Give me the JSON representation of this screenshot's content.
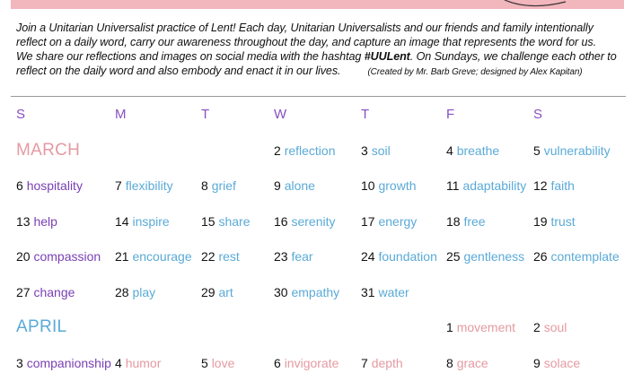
{
  "colors": {
    "band": "#f2b6bd",
    "heading_purple": "#8a4fc0",
    "word_purple": "#7a3fb4",
    "word_blue": "#5aaad7",
    "word_pink": "#e49aa1"
  },
  "intro": {
    "line1": "Join a Unitarian Universalist practice of Lent! Each day, Unitarian Universalists and our friends and family intentionally",
    "line2": "reflect on a daily word, carry our awareness throughout the day, and capture an image that represents the word for us.",
    "line3_before": "We share our reflections and images on social media with the hashtag ",
    "hashtag": "#UULent",
    "line3_after": ". On Sundays, we challenge each other to",
    "line4": "reflect on the daily word and also embody and enact it in our lives.",
    "credit": "(Created by Mr. Barb Greve; designed by Alex Kapitan)"
  },
  "weekdays": [
    "S",
    "M",
    "T",
    "W",
    "T",
    "F",
    "S"
  ],
  "months": {
    "march": "MARCH",
    "april": "APRIL"
  },
  "weeks": [
    [
      null,
      null,
      null,
      {
        "num": "2",
        "word": "reflection",
        "color": "blue"
      },
      {
        "num": "3",
        "word": "soil",
        "color": "blue"
      },
      {
        "num": "4",
        "word": "breathe",
        "color": "blue"
      },
      {
        "num": "5",
        "word": "vulnerability",
        "color": "blue"
      }
    ],
    [
      {
        "num": "6",
        "word": "hospitality",
        "color": "purple"
      },
      {
        "num": "7",
        "word": "flexibility",
        "color": "blue"
      },
      {
        "num": "8",
        "word": "grief",
        "color": "blue"
      },
      {
        "num": "9",
        "word": "alone",
        "color": "blue"
      },
      {
        "num": "10",
        "word": "growth",
        "color": "blue"
      },
      {
        "num": "11",
        "word": "adaptability",
        "color": "blue"
      },
      {
        "num": "12",
        "word": "faith",
        "color": "blue"
      }
    ],
    [
      {
        "num": "13",
        "word": "help",
        "color": "purple"
      },
      {
        "num": "14",
        "word": "inspire",
        "color": "blue"
      },
      {
        "num": "15",
        "word": "share",
        "color": "blue"
      },
      {
        "num": "16",
        "word": "serenity",
        "color": "blue"
      },
      {
        "num": "17",
        "word": "energy",
        "color": "blue"
      },
      {
        "num": "18",
        "word": "free",
        "color": "blue"
      },
      {
        "num": "19",
        "word": "trust",
        "color": "blue"
      }
    ],
    [
      {
        "num": "20",
        "word": "compassion",
        "color": "purple"
      },
      {
        "num": "21",
        "word": "encourage",
        "color": "blue"
      },
      {
        "num": "22",
        "word": "rest",
        "color": "blue"
      },
      {
        "num": "23",
        "word": "fear",
        "color": "blue"
      },
      {
        "num": "24",
        "word": "foundation",
        "color": "blue"
      },
      {
        "num": "25",
        "word": "gentleness",
        "color": "blue"
      },
      {
        "num": "26",
        "word": "contemplate",
        "color": "blue"
      }
    ],
    [
      {
        "num": "27",
        "word": "change",
        "color": "purple"
      },
      {
        "num": "28",
        "word": "play",
        "color": "blue"
      },
      {
        "num": "29",
        "word": "art",
        "color": "blue"
      },
      {
        "num": "30",
        "word": "empathy",
        "color": "blue"
      },
      {
        "num": "31",
        "word": "water",
        "color": "blue"
      },
      null,
      null
    ],
    [
      null,
      null,
      null,
      null,
      null,
      {
        "num": "1",
        "word": "movement",
        "color": "pink"
      },
      {
        "num": "2",
        "word": "soul",
        "color": "pink"
      }
    ],
    [
      {
        "num": "3",
        "word": "companionship",
        "color": "purple"
      },
      {
        "num": "4",
        "word": "humor",
        "color": "pink"
      },
      {
        "num": "5",
        "word": "love",
        "color": "pink"
      },
      {
        "num": "6",
        "word": "invigorate",
        "color": "pink"
      },
      {
        "num": "7",
        "word": "depth",
        "color": "pink"
      },
      {
        "num": "8",
        "word": "grace",
        "color": "pink"
      },
      {
        "num": "9",
        "word": "solace",
        "color": "pink"
      }
    ]
  ]
}
